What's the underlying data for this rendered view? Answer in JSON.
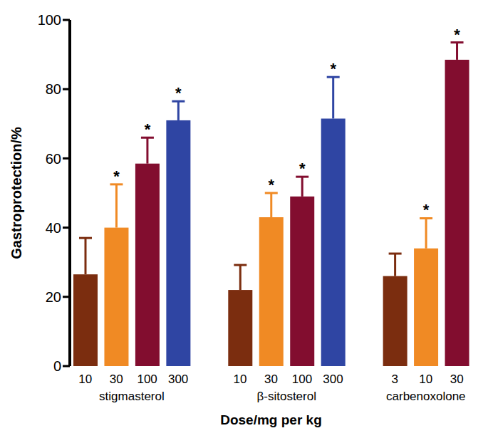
{
  "chart_data": {
    "type": "bar",
    "y_label": "Gastroprotection/%",
    "x_label": "Dose/mg per kg",
    "ylim": [
      0,
      100
    ],
    "yticks": [
      0,
      20,
      40,
      60,
      80,
      100
    ],
    "grid": false,
    "groups": [
      {
        "name": "stigmasterol",
        "categories": [
          "10",
          "30",
          "100",
          "300"
        ],
        "values": [
          26.5,
          40,
          58.5,
          71
        ],
        "errors": [
          10.5,
          12.5,
          7.5,
          5.5
        ],
        "significance": [
          null,
          "*",
          "*",
          "*"
        ],
        "colors": [
          "#7b2d0f",
          "#f08a24",
          "#820d2f",
          "#2f45a3"
        ]
      },
      {
        "name": "β-sitosterol",
        "categories": [
          "10",
          "30",
          "100",
          "300"
        ],
        "values": [
          22,
          43,
          49,
          71.5
        ],
        "errors": [
          7.2,
          7,
          5.7,
          12
        ],
        "significance": [
          null,
          "*",
          "*",
          "*"
        ],
        "colors": [
          "#7b2d0f",
          "#f08a24",
          "#820d2f",
          "#2f45a3"
        ]
      },
      {
        "name": "carbenoxolone",
        "categories": [
          "3",
          "10",
          "30"
        ],
        "values": [
          26,
          34,
          88.5
        ],
        "errors": [
          6.5,
          8.7,
          5
        ],
        "significance": [
          null,
          "*",
          "*"
        ],
        "colors": [
          "#7b2d0f",
          "#f08a24",
          "#820d2f"
        ]
      }
    ]
  }
}
